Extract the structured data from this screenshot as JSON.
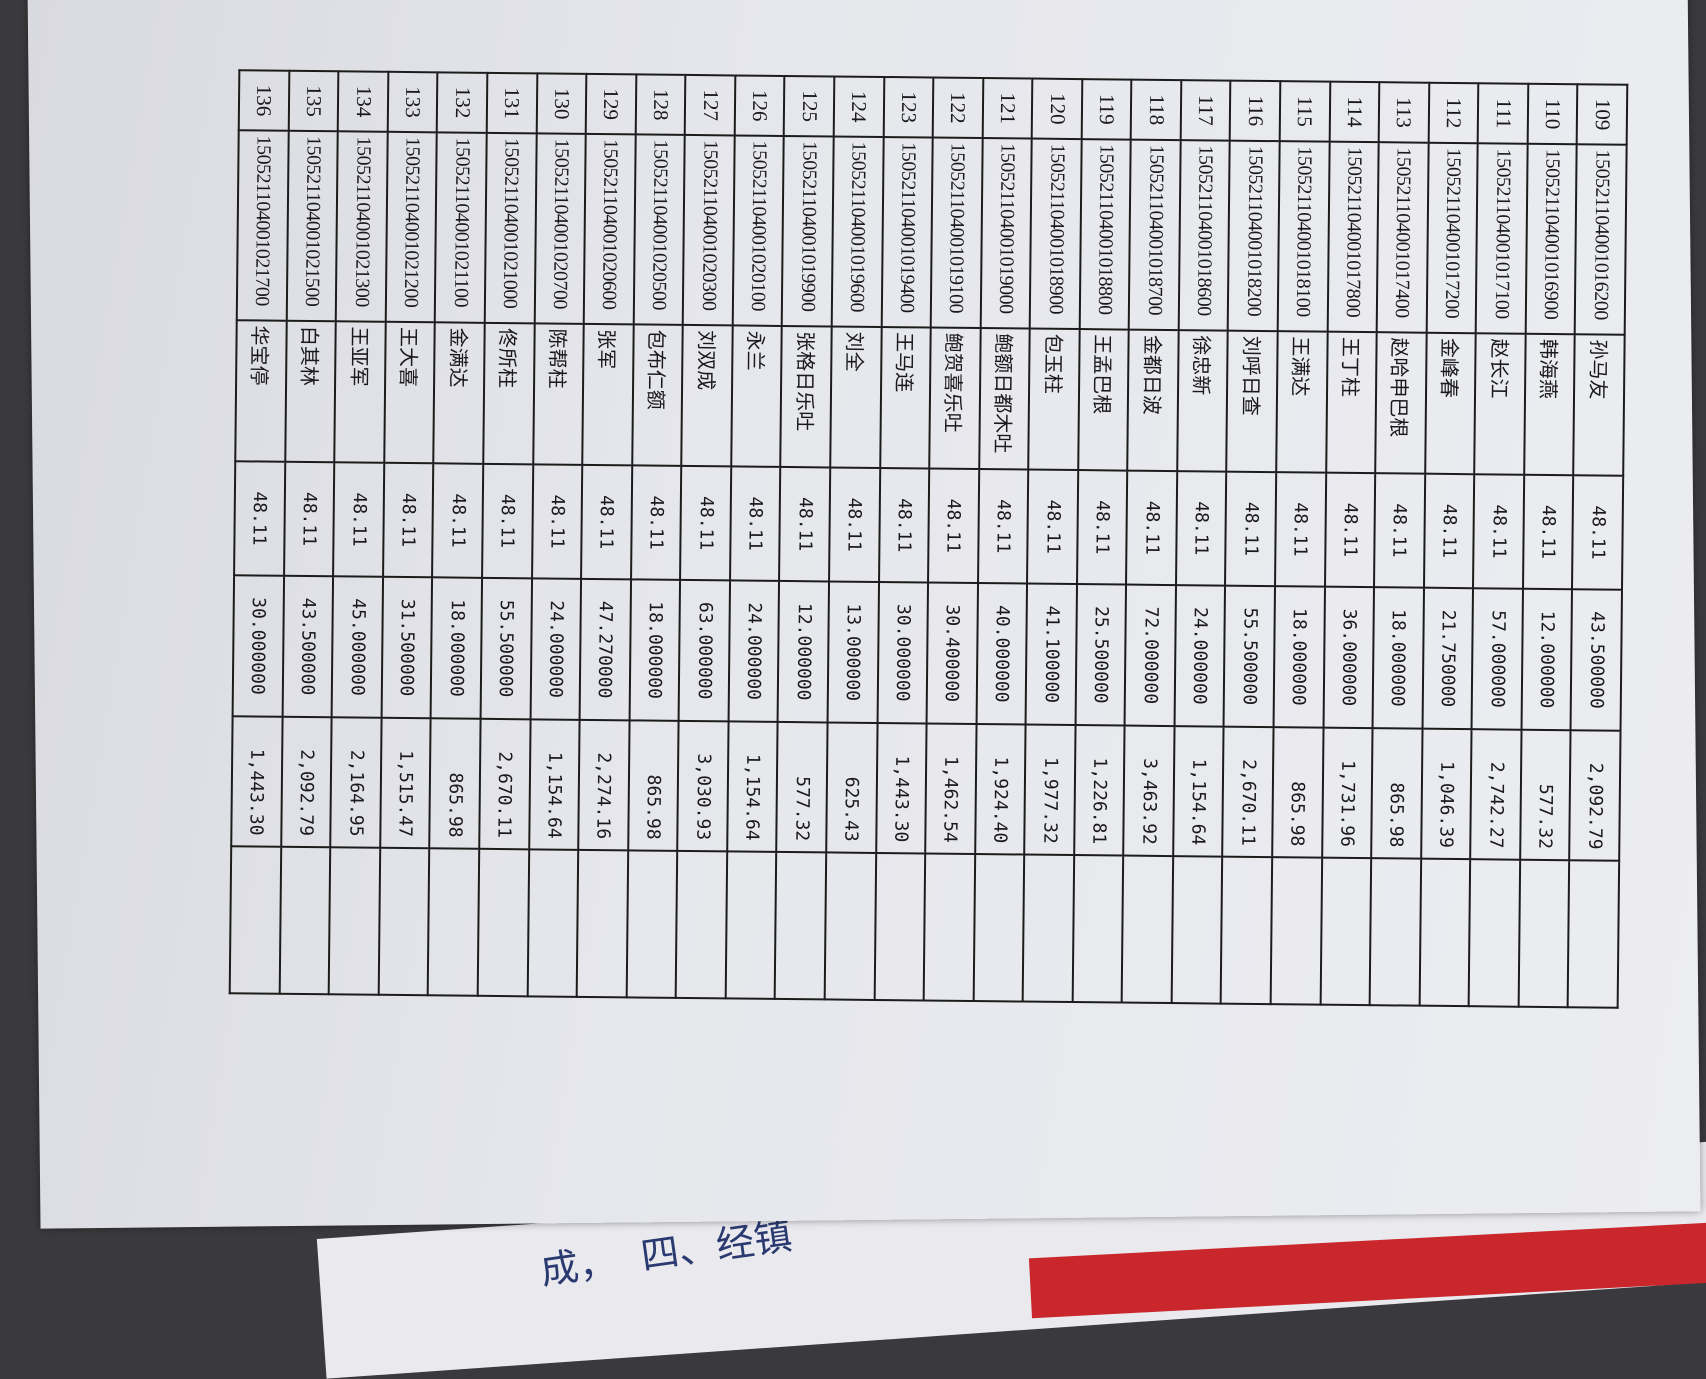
{
  "rows": [
    {
      "no": "109",
      "id": "150521104001016200",
      "name": "孙马友",
      "price": "48.11",
      "area": "43.500000",
      "amount": "2,092.79"
    },
    {
      "no": "110",
      "id": "150521104001016900",
      "name": "韩海燕",
      "price": "48.11",
      "area": "12.000000",
      "amount": "577.32"
    },
    {
      "no": "111",
      "id": "150521104001017100",
      "name": "赵长江",
      "price": "48.11",
      "area": "57.000000",
      "amount": "2,742.27"
    },
    {
      "no": "112",
      "id": "150521104001017200",
      "name": "金峰春",
      "price": "48.11",
      "area": "21.750000",
      "amount": "1,046.39"
    },
    {
      "no": "113",
      "id": "150521104001017400",
      "name": "赵哈申巴根",
      "price": "48.11",
      "area": "18.000000",
      "amount": "865.98"
    },
    {
      "no": "114",
      "id": "150521104001017800",
      "name": "王丁柱",
      "price": "48.11",
      "area": "36.000000",
      "amount": "1,731.96"
    },
    {
      "no": "115",
      "id": "150521104001018100",
      "name": "王满达",
      "price": "48.11",
      "area": "18.000000",
      "amount": "865.98"
    },
    {
      "no": "116",
      "id": "150521104001018200",
      "name": "刘呼日查",
      "price": "48.11",
      "area": "55.500000",
      "amount": "2,670.11"
    },
    {
      "no": "117",
      "id": "150521104001018600",
      "name": "徐忠新",
      "price": "48.11",
      "area": "24.000000",
      "amount": "1,154.64"
    },
    {
      "no": "118",
      "id": "150521104001018700",
      "name": "金都日波",
      "price": "48.11",
      "area": "72.000000",
      "amount": "3,463.92"
    },
    {
      "no": "119",
      "id": "150521104001018800",
      "name": "王孟巴根",
      "price": "48.11",
      "area": "25.500000",
      "amount": "1,226.81"
    },
    {
      "no": "120",
      "id": "150521104001018900",
      "name": "包玉柱",
      "price": "48.11",
      "area": "41.100000",
      "amount": "1,977.32"
    },
    {
      "no": "121",
      "id": "150521104001019000",
      "name": "鲍额日都木吐",
      "price": "48.11",
      "area": "40.000000",
      "amount": "1,924.40"
    },
    {
      "no": "122",
      "id": "150521104001019100",
      "name": "鲍贺喜乐吐",
      "price": "48.11",
      "area": "30.400000",
      "amount": "1,462.54"
    },
    {
      "no": "123",
      "id": "150521104001019400",
      "name": "王马连",
      "price": "48.11",
      "area": "30.000000",
      "amount": "1,443.30"
    },
    {
      "no": "124",
      "id": "150521104001019600",
      "name": "刘全",
      "price": "48.11",
      "area": "13.000000",
      "amount": "625.43"
    },
    {
      "no": "125",
      "id": "150521104001019900",
      "name": "张格日乐吐",
      "price": "48.11",
      "area": "12.000000",
      "amount": "577.32"
    },
    {
      "no": "126",
      "id": "150521104001020100",
      "name": "永兰",
      "price": "48.11",
      "area": "24.000000",
      "amount": "1,154.64"
    },
    {
      "no": "127",
      "id": "150521104001020300",
      "name": "刘双成",
      "price": "48.11",
      "area": "63.000000",
      "amount": "3,030.93"
    },
    {
      "no": "128",
      "id": "150521104001020500",
      "name": "包布仁额",
      "price": "48.11",
      "area": "18.000000",
      "amount": "865.98"
    },
    {
      "no": "129",
      "id": "150521104001020600",
      "name": "张军",
      "price": "48.11",
      "area": "47.270000",
      "amount": "2,274.16"
    },
    {
      "no": "130",
      "id": "150521104001020700",
      "name": "陈帮柱",
      "price": "48.11",
      "area": "24.000000",
      "amount": "1,154.64"
    },
    {
      "no": "131",
      "id": "150521104001021000",
      "name": "佟所柱",
      "price": "48.11",
      "area": "55.500000",
      "amount": "2,670.11"
    },
    {
      "no": "132",
      "id": "150521104001021100",
      "name": "金满达",
      "price": "48.11",
      "area": "18.000000",
      "amount": "865.98"
    },
    {
      "no": "133",
      "id": "150521104001021200",
      "name": "王大喜",
      "price": "48.11",
      "area": "31.500000",
      "amount": "1,515.47"
    },
    {
      "no": "134",
      "id": "150521104001021300",
      "name": "王亚军",
      "price": "48.11",
      "area": "45.000000",
      "amount": "2,164.95"
    },
    {
      "no": "135",
      "id": "150521104001021500",
      "name": "白其林",
      "price": "48.11",
      "area": "43.500000",
      "amount": "2,092.79"
    },
    {
      "no": "136",
      "id": "150521104001021700",
      "name": "华宝停",
      "price": "48.11",
      "area": "30.000000",
      "amount": "1,443.30"
    }
  ],
  "under_page": {
    "line1": "四、经镇",
    "line2": "成，"
  },
  "colors": {
    "ink": "#1a1a1c",
    "paper": "#e6e7ec",
    "red_cover": "#c9272b"
  }
}
